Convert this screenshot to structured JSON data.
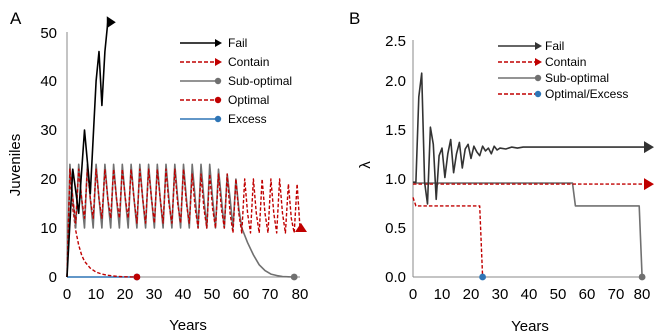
{
  "colors": {
    "fail": "#000000",
    "contain": "#c00000",
    "suboptimal": "#707070",
    "optimal": "#c00000",
    "excess": "#2e75b6",
    "optimal_excess_dot": "#2e75b6"
  },
  "chart_data": [
    {
      "type": "line",
      "panel": "A",
      "xlabel": "Years",
      "ylabel": "Juveniles",
      "xlim": [
        0,
        80
      ],
      "ylim": [
        0,
        50
      ],
      "xticks": [
        "0",
        "10",
        "20",
        "30",
        "40",
        "50",
        "60",
        "70",
        "80"
      ],
      "yticks": [
        "0",
        "10",
        "20",
        "30",
        "40",
        "50"
      ],
      "grid": false,
      "legend_position": "top-right",
      "series": [
        {
          "name": "Fail",
          "style": "solid-arrow",
          "color": "#000000",
          "x": [
            0,
            2,
            4,
            6,
            8,
            10,
            11,
            12,
            13,
            14
          ],
          "y": [
            0,
            22,
            13,
            30,
            17,
            40,
            46,
            35,
            46,
            52
          ]
        },
        {
          "name": "Contain",
          "style": "dashed-arrow",
          "color": "#c00000",
          "x": [
            0,
            1,
            2,
            3,
            4,
            5,
            6,
            7,
            8,
            9,
            10,
            11,
            12,
            13,
            14,
            15,
            16,
            17,
            18,
            19,
            20,
            21,
            22,
            23,
            24,
            25,
            26,
            27,
            28,
            29,
            30,
            31,
            32,
            33,
            34,
            35,
            36,
            37,
            38,
            39,
            40,
            41,
            42,
            43,
            44,
            45,
            46,
            47,
            48,
            49,
            50,
            51,
            52,
            53,
            54,
            55,
            56,
            57,
            58,
            59,
            60,
            61,
            62,
            63,
            64,
            65,
            66,
            67,
            68,
            69,
            70,
            71,
            72,
            73,
            74,
            75,
            76,
            77,
            78,
            79,
            80
          ],
          "y": [
            0,
            22,
            16,
            11,
            22,
            16,
            12,
            22,
            16,
            12,
            22,
            16,
            12,
            22,
            16,
            12,
            22,
            16,
            12,
            22,
            16,
            12,
            22,
            16,
            11,
            22,
            16,
            11,
            22,
            16,
            11,
            22,
            16,
            11,
            22,
            15,
            11,
            22,
            15,
            11,
            22,
            15,
            11,
            21,
            14,
            10,
            21,
            14,
            10,
            21,
            14,
            10,
            21,
            14,
            10,
            21,
            13,
            9,
            20,
            13,
            9,
            20,
            13,
            9,
            20,
            13,
            9,
            20,
            13,
            9,
            20,
            13,
            9,
            20,
            13,
            9,
            19,
            12,
            9,
            19,
            10
          ]
        },
        {
          "name": "Sub-optimal",
          "style": "solid-dot",
          "color": "#707070",
          "x": [
            0,
            1,
            2,
            3,
            4,
            5,
            6,
            7,
            8,
            9,
            10,
            11,
            12,
            13,
            14,
            15,
            16,
            17,
            18,
            19,
            20,
            21,
            22,
            23,
            24,
            25,
            26,
            27,
            28,
            29,
            30,
            31,
            32,
            33,
            34,
            35,
            36,
            37,
            38,
            39,
            40,
            41,
            42,
            43,
            44,
            45,
            46,
            47,
            48,
            49,
            50,
            51,
            52,
            53,
            54,
            55,
            56,
            57,
            58,
            59,
            60,
            62,
            64,
            66,
            68,
            70,
            72,
            74,
            76,
            78
          ],
          "y": [
            0,
            23,
            16,
            10,
            23,
            16,
            10,
            23,
            16,
            10,
            23,
            16,
            10,
            23,
            16,
            10,
            23,
            16,
            10,
            23,
            16,
            10,
            23,
            16,
            10,
            23,
            16,
            10,
            23,
            16,
            10,
            23,
            16,
            10,
            23,
            16,
            10,
            23,
            16,
            10,
            23,
            16,
            10,
            23,
            16,
            10,
            23,
            16,
            10,
            23,
            16,
            10,
            22,
            16,
            10,
            21,
            16,
            10,
            20,
            14,
            10,
            7,
            4.5,
            2.5,
            1.3,
            0.6,
            0.3,
            0.1,
            0.05,
            0
          ]
        },
        {
          "name": "Optimal",
          "style": "dashed-dot",
          "color": "#c00000",
          "x": [
            0,
            1,
            2,
            3,
            4,
            5,
            6,
            8,
            10,
            12,
            14,
            16,
            18,
            20,
            22,
            24
          ],
          "y": [
            0,
            21,
            14,
            9.5,
            6.5,
            4.5,
            3.2,
            1.8,
            1.0,
            0.6,
            0.35,
            0.2,
            0.1,
            0.05,
            0.02,
            0
          ]
        },
        {
          "name": "Excess",
          "style": "solid-dot",
          "color": "#2e75b6",
          "x": [
            0,
            24
          ],
          "y": [
            0,
            0
          ]
        }
      ]
    },
    {
      "type": "line",
      "panel": "B",
      "xlabel": "Years",
      "ylabel": "λ",
      "xlim": [
        0,
        80
      ],
      "ylim": [
        0,
        2.5
      ],
      "xticks": [
        "0",
        "10",
        "20",
        "30",
        "40",
        "50",
        "60",
        "70",
        "80"
      ],
      "yticks": [
        "0.0",
        "0.5",
        "1.0",
        "1.5",
        "2.0",
        "2.5"
      ],
      "grid": false,
      "legend_position": "top-right",
      "series": [
        {
          "name": "Fail",
          "style": "solid-arrow",
          "color": "#333333",
          "x": [
            0,
            1,
            2,
            3,
            4,
            5,
            6,
            7,
            8,
            9,
            10,
            11,
            12,
            13,
            14,
            15,
            16,
            17,
            18,
            19,
            20,
            21,
            22,
            23,
            24,
            25,
            26,
            27,
            28,
            29,
            30,
            32,
            34,
            36,
            38,
            40,
            45,
            50,
            60,
            70,
            80
          ],
          "y": [
            1.0,
            1.0,
            1.9,
            2.15,
            1.0,
            0.77,
            1.58,
            1.4,
            0.82,
            1.28,
            1.36,
            1.05,
            1.3,
            1.45,
            1.1,
            1.3,
            1.42,
            1.15,
            1.35,
            1.4,
            1.25,
            1.38,
            1.32,
            1.28,
            1.38,
            1.33,
            1.36,
            1.3,
            1.38,
            1.34,
            1.36,
            1.35,
            1.37,
            1.36,
            1.37,
            1.37,
            1.37,
            1.37,
            1.37,
            1.37,
            1.37
          ]
        },
        {
          "name": "Contain",
          "style": "dashed-arrow",
          "color": "#c00000",
          "x": [
            0,
            80
          ],
          "y": [
            0.98,
            0.98
          ]
        },
        {
          "name": "Sub-optimal",
          "style": "solid-dot",
          "color": "#707070",
          "x": [
            0,
            1,
            55,
            56,
            78,
            79
          ],
          "y": [
            1.0,
            0.99,
            0.99,
            0.75,
            0.75,
            0
          ]
        },
        {
          "name": "Optimal/Excess",
          "style": "dashed-dot",
          "color": "#c00000",
          "x": [
            0,
            1,
            22,
            23,
            24
          ],
          "y": [
            0.84,
            0.75,
            0.75,
            0.75,
            0
          ]
        }
      ]
    }
  ],
  "panels": [
    {
      "letter": "A",
      "xlabel": "Years",
      "ylabel": "Juveniles",
      "xticks": [
        "0",
        "10",
        "20",
        "30",
        "40",
        "50",
        "60",
        "70",
        "80"
      ],
      "yticks": [
        "0",
        "10",
        "20",
        "30",
        "40",
        "50"
      ],
      "legend": [
        "Fail",
        "Contain",
        "Sub-optimal",
        "Optimal",
        "Excess"
      ]
    },
    {
      "letter": "B",
      "xlabel": "Years",
      "ylabel": "λ",
      "xticks": [
        "0",
        "10",
        "20",
        "30",
        "40",
        "50",
        "60",
        "70",
        "80"
      ],
      "yticks": [
        "0.0",
        "0.5",
        "1.0",
        "1.5",
        "2.0",
        "2.5"
      ],
      "legend": [
        "Fail",
        "Contain",
        "Sub-optimal",
        "Optimal/Excess"
      ]
    }
  ]
}
